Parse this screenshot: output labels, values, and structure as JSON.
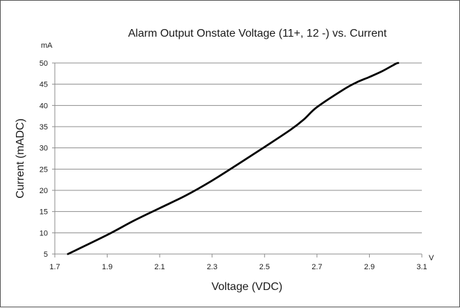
{
  "chart_data": {
    "type": "line",
    "title": "Alarm Output Onstate Voltage  (11+, 12 -) vs. Current",
    "xlabel": "Voltage (VDC)",
    "ylabel": "Current (mADC)",
    "x_unit": "V",
    "y_unit": "mA",
    "xlim": [
      1.7,
      3.1
    ],
    "ylim": [
      5,
      50
    ],
    "x_ticks": [
      1.7,
      1.9,
      2.1,
      2.3,
      2.5,
      2.7,
      2.9,
      3.1
    ],
    "x_tick_labels": [
      "1.7",
      "1.9",
      "2.1",
      "2.3",
      "2.5",
      "2.7",
      "2.9",
      "3.1"
    ],
    "y_ticks": [
      5,
      10,
      15,
      20,
      25,
      30,
      35,
      40,
      45,
      50
    ],
    "y_tick_labels": [
      "5",
      "10",
      "15",
      "20",
      "25",
      "30",
      "35",
      "40",
      "45",
      "50"
    ],
    "grid": "horizontal",
    "legend": "none",
    "line_color": "#000000",
    "series": [
      {
        "x": [
          1.75,
          1.9,
          2.0,
          2.1,
          2.2,
          2.3,
          2.4,
          2.5,
          2.6,
          2.65,
          2.7,
          2.8,
          2.85,
          2.9,
          2.95,
          3.0,
          3.01
        ],
        "y": [
          5,
          9.5,
          12.8,
          15.8,
          18.8,
          22.3,
          26.2,
          30.2,
          34.3,
          36.7,
          39.6,
          43.7,
          45.4,
          46.7,
          48.1,
          49.8,
          50
        ]
      }
    ]
  }
}
